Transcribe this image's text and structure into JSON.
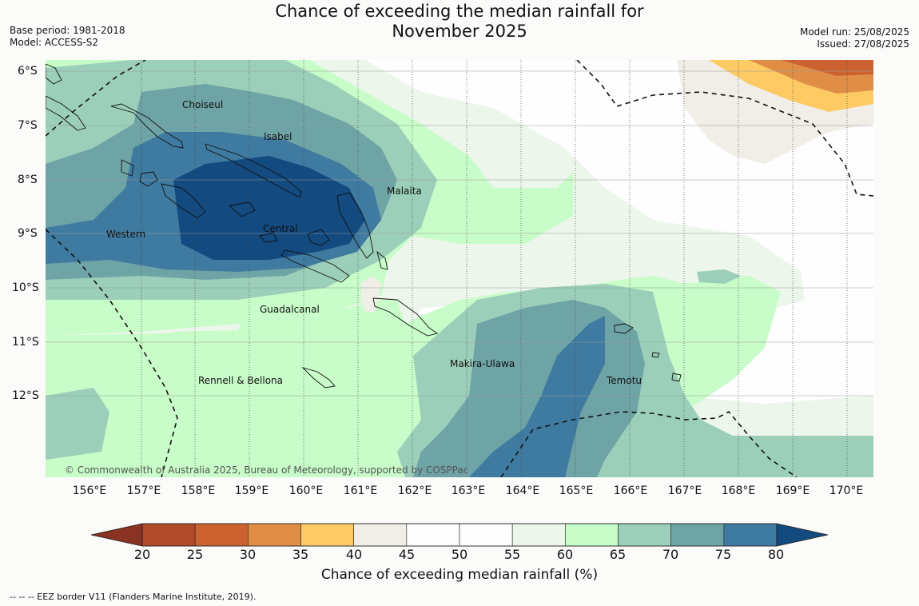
{
  "title": {
    "line1": "Chance of exceeding the median rainfall for",
    "line2": "November 2025"
  },
  "meta_left": {
    "base_period": "Base period: 1981-2018",
    "model": "Model: ACCESS-S2"
  },
  "meta_right": {
    "model_run": "Model run: 25/08/2025",
    "issued": "Issued: 27/08/2025"
  },
  "map": {
    "lat_labels": [
      "6°S",
      "7°S",
      "8°S",
      "9°S",
      "10°S",
      "11°S",
      "12°S"
    ],
    "lon_labels": [
      "156°E",
      "157°E",
      "158°E",
      "159°E",
      "160°E",
      "161°E",
      "162°E",
      "163°E",
      "164°E",
      "165°E",
      "166°E",
      "167°E",
      "168°E",
      "169°E",
      "170°E"
    ],
    "places": [
      {
        "name": "Choiseul"
      },
      {
        "name": "Isabel"
      },
      {
        "name": "Malaita"
      },
      {
        "name": "Western"
      },
      {
        "name": "Central"
      },
      {
        "name": "Guadalcanal"
      },
      {
        "name": "Makira-Ulawa"
      },
      {
        "name": "Rennell & Bellona"
      },
      {
        "name": "Temotu"
      }
    ],
    "copyright": "© Commonwealth of Australia 2025, Bureau of Meteorology, supported by COSPPac"
  },
  "colorbar": {
    "label": "Chance of exceeding median rainfall (%)",
    "ticks": [
      "20",
      "25",
      "30",
      "35",
      "40",
      "45",
      "50",
      "55",
      "60",
      "65",
      "70",
      "75",
      "80"
    ],
    "under_color": "#8a3322",
    "over_color": "#134a80",
    "colors": [
      "#b04a28",
      "#cd6231",
      "#e08e46",
      "#fdca64",
      "#f1ede7",
      "#fefefe",
      "#fefefe",
      "#ecf6eb",
      "#c8fcc8",
      "#9bcfb9",
      "#6fa4a6",
      "#3f7aa0"
    ]
  },
  "footnote": "--  --  -- EEZ border V11 (Flanders Marine Institute, 2019)."
}
